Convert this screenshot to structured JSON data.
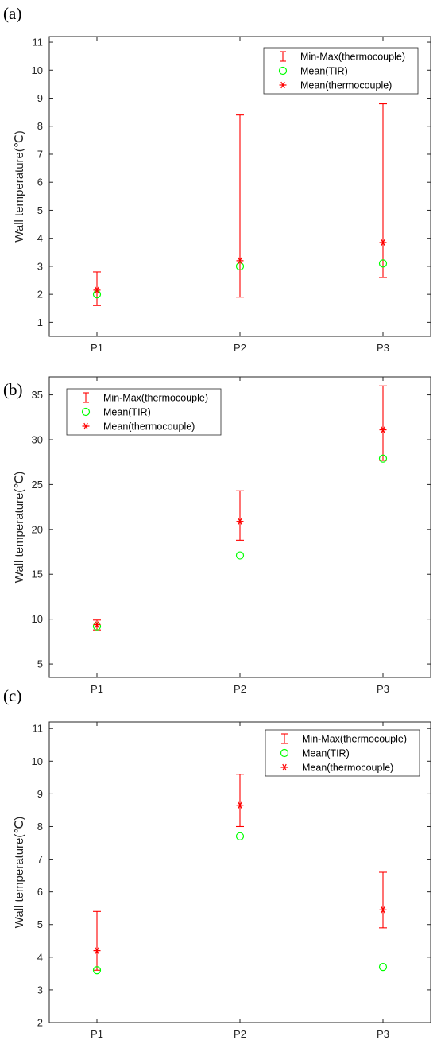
{
  "colors": {
    "errorbar": "#ff0000",
    "mean_tir": "#00ff00",
    "mean_thermocouple": "#ff0000",
    "axis": "#262626"
  },
  "chart_data": [
    {
      "panel": "(a)",
      "type": "scatter",
      "categories": [
        "P1",
        "P2",
        "P3"
      ],
      "ylabel": "Wall temperature(℃)",
      "ylim": [
        0.5,
        11.2
      ],
      "yticks": [
        1,
        2,
        3,
        4,
        5,
        6,
        7,
        8,
        9,
        10,
        11
      ],
      "legend_position": "top-right",
      "grid": false,
      "series": [
        {
          "name": "Min-Max(thermocouple)",
          "marker": "errorbar",
          "min": [
            1.6,
            1.9,
            2.6
          ],
          "max": [
            2.8,
            8.4,
            8.8
          ]
        },
        {
          "name": "Mean(TIR)",
          "marker": "circle",
          "values": [
            2.0,
            3.0,
            3.1
          ]
        },
        {
          "name": "Mean(thermocouple)",
          "marker": "asterisk",
          "values": [
            2.15,
            3.2,
            3.85
          ]
        }
      ]
    },
    {
      "panel": "(b)",
      "type": "scatter",
      "categories": [
        "P1",
        "P2",
        "P3"
      ],
      "ylabel": "Wall temperature(℃)",
      "ylim": [
        3.5,
        37
      ],
      "yticks": [
        5,
        10,
        15,
        20,
        25,
        30,
        35
      ],
      "legend_position": "top-left",
      "grid": false,
      "series": [
        {
          "name": "Min-Max(thermocouple)",
          "marker": "errorbar",
          "min": [
            8.8,
            18.8,
            27.7
          ],
          "max": [
            9.9,
            24.3,
            36.0
          ]
        },
        {
          "name": "Mean(TIR)",
          "marker": "circle",
          "values": [
            9.2,
            17.1,
            27.9
          ]
        },
        {
          "name": "Mean(thermocouple)",
          "marker": "asterisk",
          "values": [
            9.4,
            20.9,
            31.1
          ]
        }
      ]
    },
    {
      "panel": "(c)",
      "type": "scatter",
      "categories": [
        "P1",
        "P2",
        "P3"
      ],
      "ylabel": "Wall temperature(℃)",
      "ylim": [
        2,
        11.2
      ],
      "yticks": [
        2,
        3,
        4,
        5,
        6,
        7,
        8,
        9,
        10,
        11
      ],
      "legend_position": "top-right",
      "grid": false,
      "series": [
        {
          "name": "Min-Max(thermocouple)",
          "marker": "errorbar",
          "min": [
            3.6,
            8.0,
            4.9
          ],
          "max": [
            5.4,
            9.6,
            6.6
          ]
        },
        {
          "name": "Mean(TIR)",
          "marker": "circle",
          "values": [
            3.6,
            7.7,
            3.7
          ]
        },
        {
          "name": "Mean(thermocouple)",
          "marker": "asterisk",
          "values": [
            4.2,
            8.65,
            5.45
          ]
        }
      ]
    }
  ]
}
